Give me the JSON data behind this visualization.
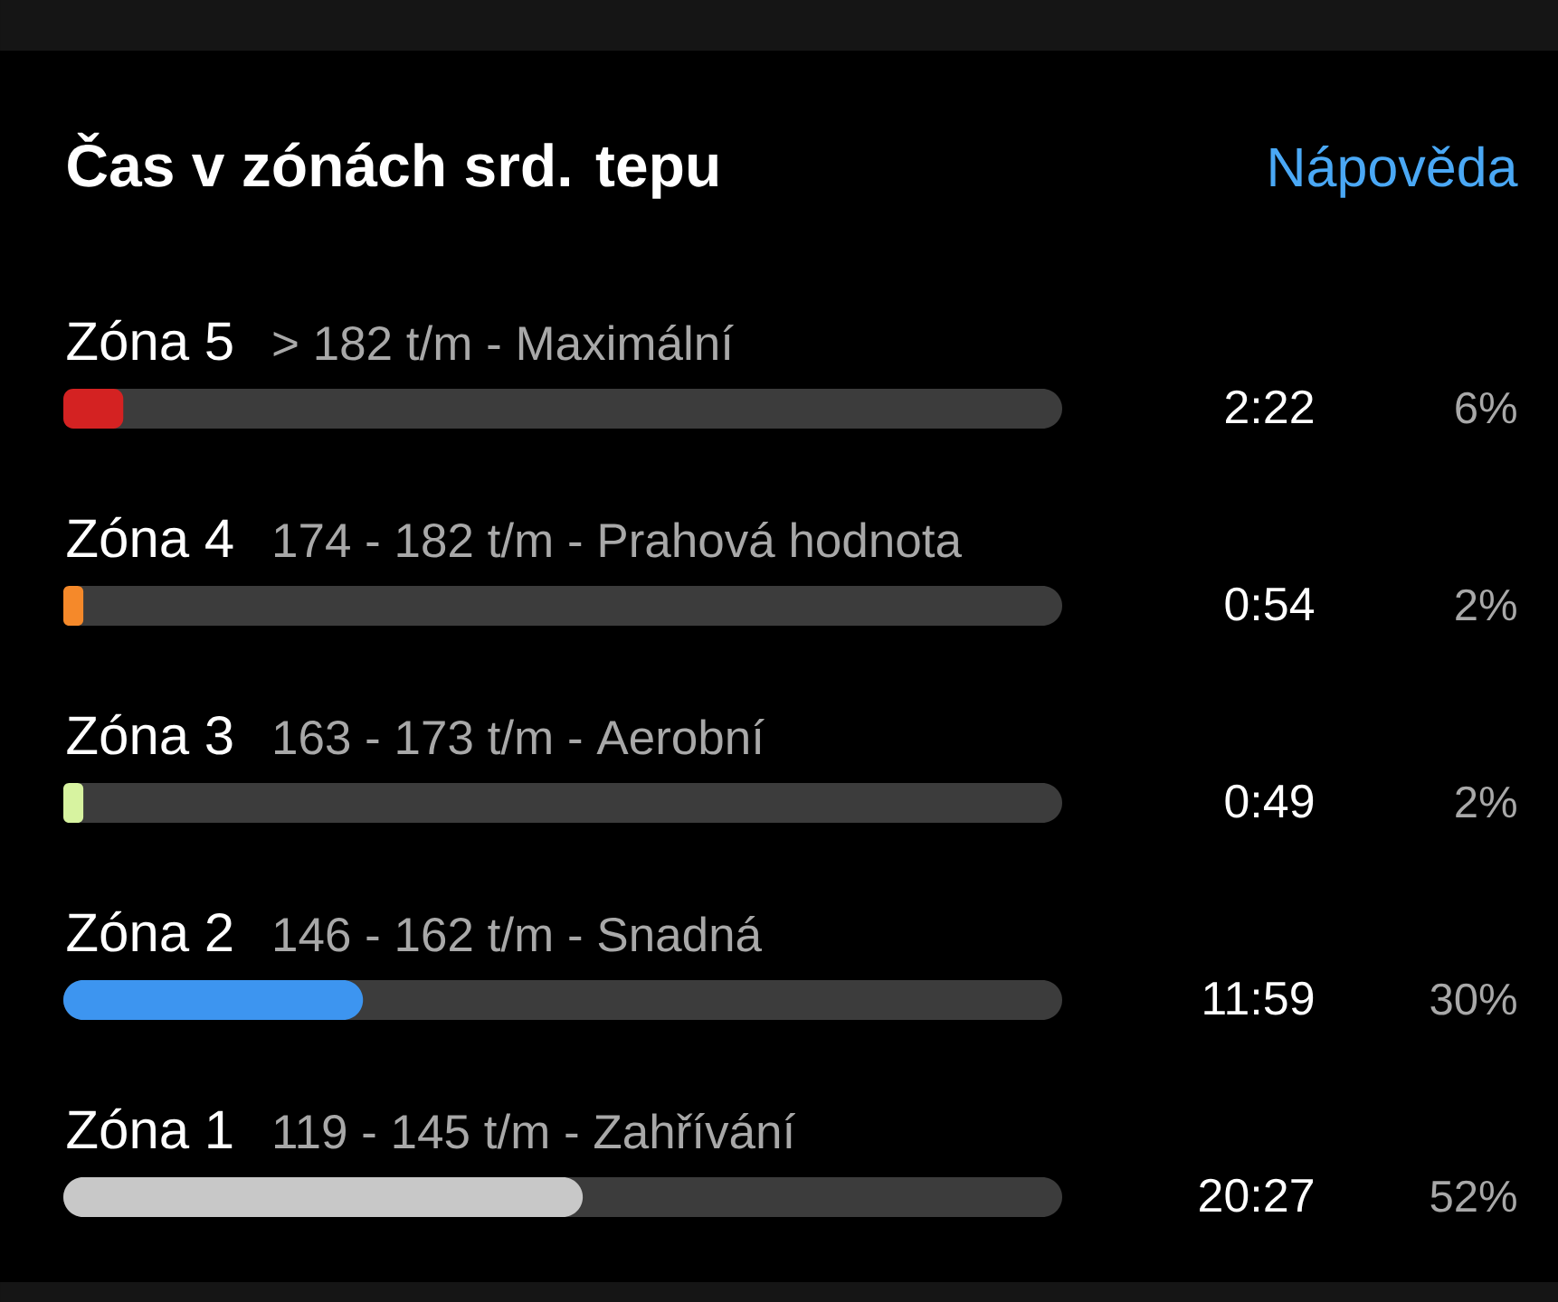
{
  "chart_data": {
    "type": "bar",
    "orientation": "horizontal",
    "title": "Čas v zónách srd. tepu",
    "categories": [
      "Zóna 5",
      "Zóna 4",
      "Zóna 3",
      "Zóna 2",
      "Zóna 1"
    ],
    "values": [
      6,
      2,
      2,
      30,
      52
    ],
    "colors": [
      "#d42222",
      "#f5892a",
      "#d7f3a0",
      "#3d95f0",
      "#c8c8c8"
    ],
    "xlim": [
      0,
      100
    ],
    "tick_labels": "y",
    "value_labels": [
      "6%",
      "2%",
      "2%",
      "30%",
      "52%"
    ],
    "annotations": [
      "Nápověda",
      "> 182 t/m - Maximální",
      "2:22",
      "174 - 182 t/m - Prahová hodnota",
      "0:54",
      "163 - 173 t/m - Aerobní",
      "0:49",
      "146 - 162 t/m - Snadná",
      "11:59",
      "119 - 145 t/m - Zahřívání",
      "20:27"
    ]
  }
}
